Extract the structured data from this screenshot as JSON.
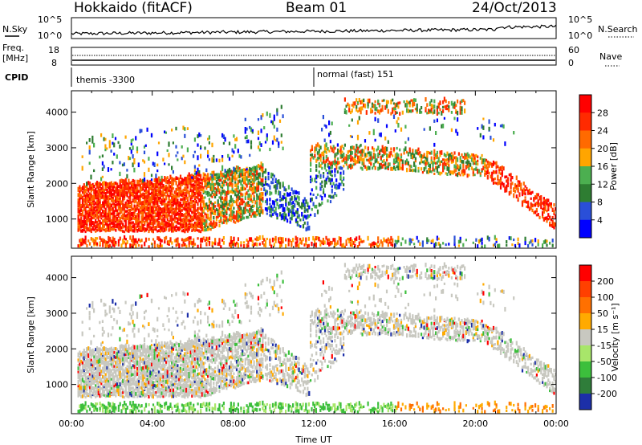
{
  "header": {
    "site": "Hokkaido (fitACF)",
    "beam": "Beam 01",
    "date": "24/Oct/2013"
  },
  "summary": {
    "nsky_label": "N.Sky",
    "nsearch_label": "N.Search",
    "noise_ticks_left": [
      "10^5",
      "10^0"
    ],
    "noise_ticks_right": [
      "10^5",
      "10^0"
    ],
    "freq_label_1": "Freq.",
    "freq_label_2": "[MHz]",
    "freq_ticks": [
      "18",
      "8"
    ],
    "nave_label": "Nave",
    "nave_ticks": [
      "60",
      "0"
    ],
    "cpid_label": "CPID",
    "cpid_segments": [
      {
        "start_hour": 0,
        "text": "themis -3300"
      },
      {
        "start_hour": 12,
        "text": "normal (fast) 151"
      }
    ]
  },
  "chart_data": [
    {
      "type": "heatmap",
      "panel": "power",
      "ylabel": "Slant Range [km]",
      "xlabel": "",
      "xlim": [
        0,
        24
      ],
      "ylim": [
        180,
        4600
      ],
      "yticks": [
        "1000",
        "2000",
        "3000",
        "4000"
      ],
      "xtick_labels": [],
      "colorbar": {
        "label": "Power [dB]",
        "ticks": [
          "4",
          "8",
          "12",
          "16",
          "20",
          "24",
          "28"
        ],
        "colors": [
          "#0000ff",
          "#2a4fd8",
          "#2e7d32",
          "#4caf50",
          "#ffa500",
          "#ff6a00",
          "#ff2a00",
          "#ff0000"
        ]
      }
    },
    {
      "type": "heatmap",
      "panel": "velocity",
      "ylabel": "Slant Range [km]",
      "xlabel": "Time UT",
      "xlim": [
        0,
        24
      ],
      "ylim": [
        180,
        4600
      ],
      "yticks": [
        "1000",
        "2000",
        "3000",
        "4000"
      ],
      "xtick_labels": [
        "00:00",
        "04:00",
        "08:00",
        "12:00",
        "16:00",
        "20:00",
        "00:00"
      ],
      "colorbar": {
        "label": "Velocity [m s⁻¹]",
        "ticks": [
          "200",
          "100",
          "50",
          "15",
          "-15",
          "-50",
          "-100",
          "-200"
        ],
        "colors": [
          "#1c2fa8",
          "#2f7d3a",
          "#3cbf3c",
          "#a8e66a",
          "#c8c8c0",
          "#ffaa00",
          "#ff7000",
          "#ff4000",
          "#ff0000"
        ]
      }
    }
  ],
  "colors": {
    "gray_scatter": "#c8c8c0"
  }
}
